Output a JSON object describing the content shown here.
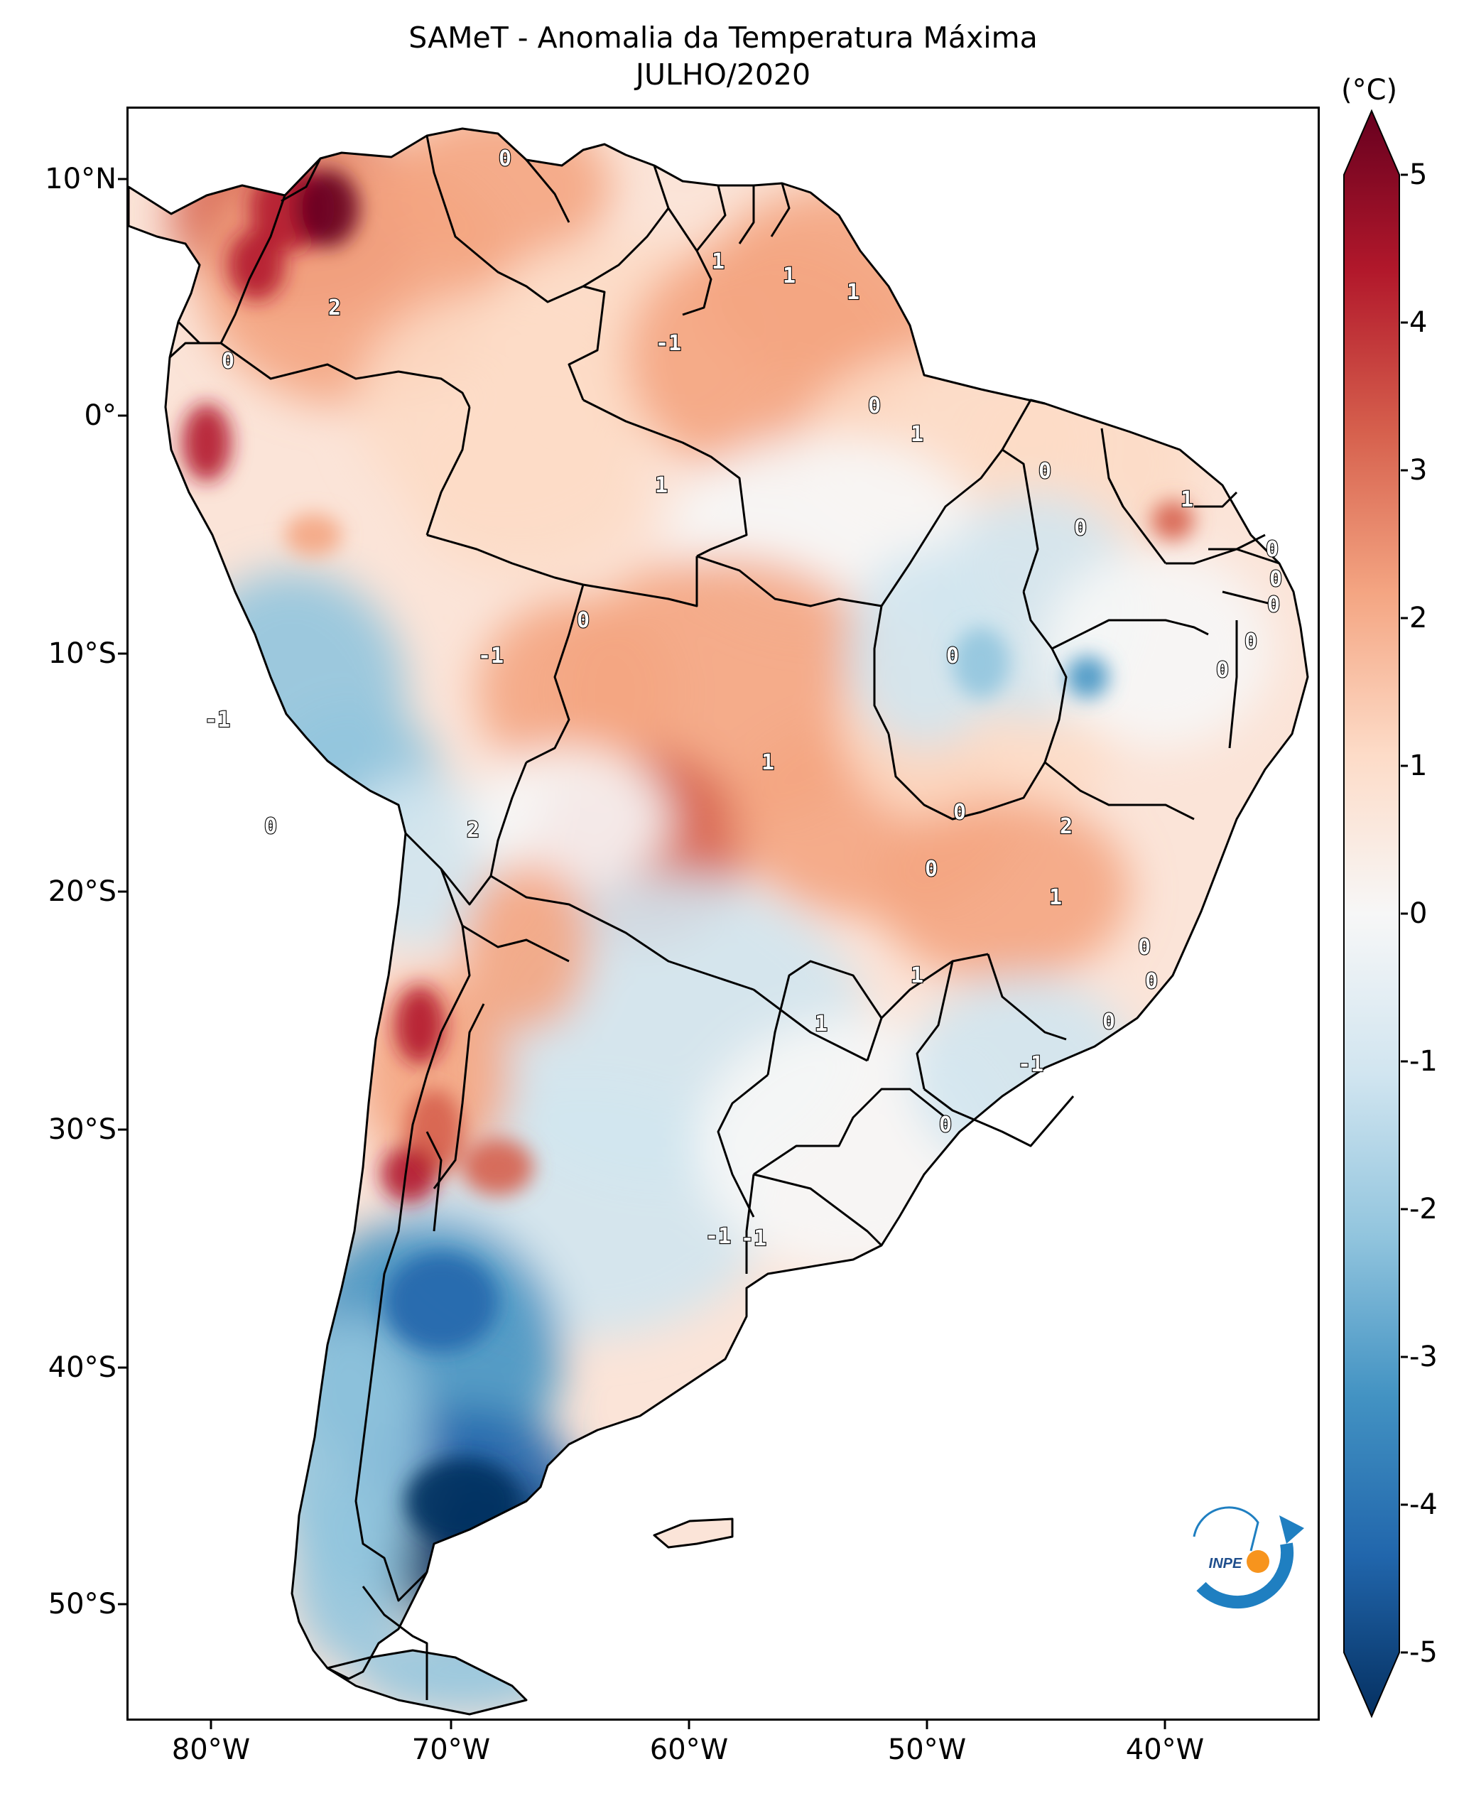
{
  "title": "SAMeT - Anomalia da Temperatura Máxima",
  "subtitle": "JULHO/2020",
  "colorbar": {
    "unit": "(°C)",
    "min": -5,
    "max": 5,
    "extend": "both",
    "ticks": [
      "5",
      "4",
      "3",
      "2",
      "1",
      "0",
      "-1",
      "-2",
      "-3",
      "-4",
      "-5"
    ],
    "colors": [
      "#053061",
      "#2166ac",
      "#4393c3",
      "#92c5de",
      "#d1e5f0",
      "#f7f7f7",
      "#fddbc7",
      "#f4a582",
      "#d6604d",
      "#b2182b",
      "#67001f"
    ]
  },
  "axes": {
    "lat_ticks": [
      "10°N",
      "0°",
      "10°S",
      "20°S",
      "30°S",
      "40°S",
      "50°S"
    ],
    "lon_ticks": [
      "80°W",
      "70°W",
      "60°W",
      "50°W",
      "40°W"
    ]
  },
  "contour_labels": [
    "0",
    "1",
    "1",
    "1",
    "2",
    "-1",
    "0",
    "1",
    "0",
    "1",
    "0",
    "0",
    "0",
    "0",
    "0",
    "1",
    "0",
    "0",
    "-1",
    "-1",
    "0",
    "0",
    "1",
    "2",
    "0",
    "0",
    "2",
    "0",
    "1",
    "0",
    "1",
    "1",
    "0",
    "0",
    "-1",
    "0",
    "-1",
    "-1"
  ],
  "logo": {
    "text": "INPE",
    "colors": {
      "arc": "#1f7fc1",
      "dot": "#f7941d"
    }
  }
}
